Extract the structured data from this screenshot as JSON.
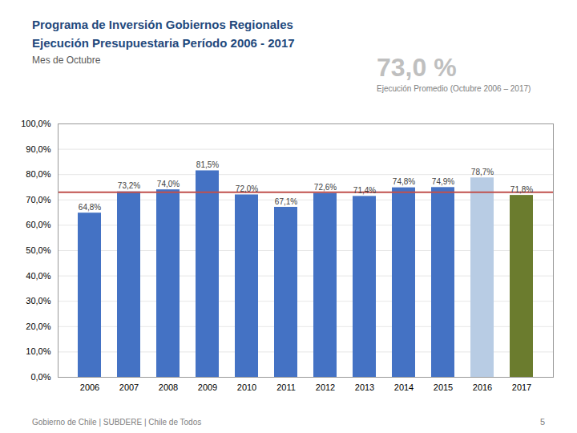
{
  "chart_data": {
    "type": "bar",
    "title": [
      "Programa de Inversión Gobiernos Regionales",
      "Ejecución Presupuestaria Período 2006 - 2017"
    ],
    "subtitle": "Mes de Octubre",
    "annotations": [
      "73,0 %",
      "Ejecución Promedio (Octubre 2006 – 2017)",
      "Gobierno de Chile | SUBDERE | Chile de Todos",
      "5"
    ],
    "categories": [
      "2006",
      "2007",
      "2008",
      "2009",
      "2010",
      "2011",
      "2012",
      "2013",
      "2014",
      "2015",
      "2016",
      "2017"
    ],
    "values": [
      64.8,
      73.2,
      74.0,
      81.5,
      72.0,
      67.1,
      72.6,
      71.4,
      74.8,
      74.9,
      78.7,
      71.8
    ],
    "value_labels": [
      "64,8%",
      "73,2%",
      "74,0%",
      "81,5%",
      "72,0%",
      "67,1%",
      "72,6%",
      "71,4%",
      "74,8%",
      "74,9%",
      "78,7%",
      "71,8%"
    ],
    "colors": [
      "#4472C4",
      "#4472C4",
      "#4472C4",
      "#4472C4",
      "#4472C4",
      "#4472C4",
      "#4472C4",
      "#4472C4",
      "#4472C4",
      "#4472C4",
      "#B8CCE4",
      "#6B7C2E"
    ],
    "data_labels": true,
    "average_line": {
      "value": 73.0,
      "color": "#C0504D"
    },
    "ylim": [
      0,
      100
    ],
    "yticks": [
      {
        "value": 0,
        "label": "0,0%"
      },
      {
        "value": 10,
        "label": "10,0%"
      },
      {
        "value": 20,
        "label": "20,0%"
      },
      {
        "value": 30,
        "label": "30,0%"
      },
      {
        "value": 40,
        "label": "40,0%"
      },
      {
        "value": 50,
        "label": "50,0%"
      },
      {
        "value": 60,
        "label": "60,0%"
      },
      {
        "value": 70,
        "label": "70,0%"
      },
      {
        "value": 80,
        "label": "80,0%"
      },
      {
        "value": 90,
        "label": "90,0%"
      },
      {
        "value": 100,
        "label": "100,0%"
      }
    ],
    "grid": true
  }
}
